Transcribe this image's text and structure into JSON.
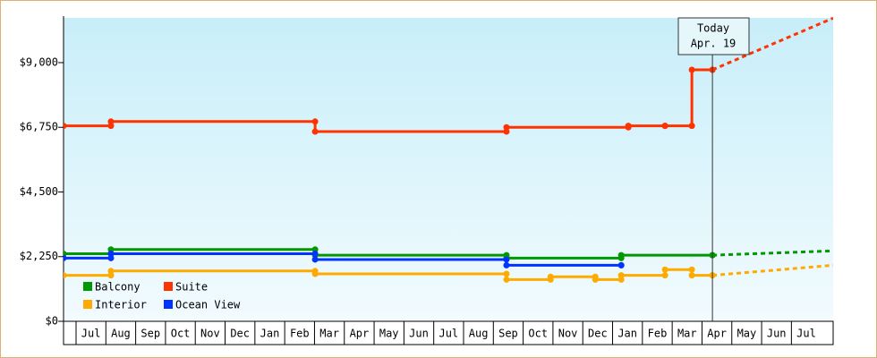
{
  "chart_data": {
    "type": "step-line",
    "xlim": [
      0.58,
      26.4
    ],
    "xticks": [
      {
        "value": 1,
        "label": "Jul"
      },
      {
        "value": 2,
        "label": "Aug"
      },
      {
        "value": 3,
        "label": "Sep"
      },
      {
        "value": 4,
        "label": "Oct"
      },
      {
        "value": 5,
        "label": "Nov"
      },
      {
        "value": 6,
        "label": "Dec"
      },
      {
        "value": 7,
        "label": "Jan"
      },
      {
        "value": 8,
        "label": "Feb"
      },
      {
        "value": 9,
        "label": "Mar"
      },
      {
        "value": 10,
        "label": "Apr"
      },
      {
        "value": 11,
        "label": "May"
      },
      {
        "value": 12,
        "label": "Jun"
      },
      {
        "value": 13,
        "label": "Jul"
      },
      {
        "value": 14,
        "label": "Aug"
      },
      {
        "value": 15,
        "label": "Sep"
      },
      {
        "value": 16,
        "label": "Oct"
      },
      {
        "value": 17,
        "label": "Nov"
      },
      {
        "value": 18,
        "label": "Dec"
      },
      {
        "value": 19,
        "label": "Jan"
      },
      {
        "value": 20,
        "label": "Feb"
      },
      {
        "value": 21,
        "label": "Mar"
      },
      {
        "value": 22,
        "label": "Apr"
      },
      {
        "value": 23,
        "label": "May"
      },
      {
        "value": 24,
        "label": "Jun"
      },
      {
        "value": 25,
        "label": "Jul"
      }
    ],
    "ylim": [
      0,
      10500
    ],
    "yticks": [
      {
        "value": 0,
        "label": "$0"
      },
      {
        "value": 2250,
        "label": "$2,250"
      },
      {
        "value": 4500,
        "label": "$4,500"
      },
      {
        "value": 6750,
        "label": "$6,750"
      },
      {
        "value": 9000,
        "label": "$9,000"
      }
    ],
    "annotation": {
      "x": 22.35,
      "lines": [
        "Today",
        "Apr. 19"
      ]
    },
    "series": [
      {
        "name": "Balcony",
        "color": "#009900",
        "x": [
          0.58,
          2.17,
          9.02,
          15.44,
          19.29,
          22.35
        ],
        "values": [
          2350,
          2500,
          2300,
          2200,
          2300,
          2300
        ],
        "forecast": {
          "x": [
            26.4
          ],
          "values": [
            2450
          ]
        }
      },
      {
        "name": "Suite",
        "color": "#ff3300",
        "x": [
          0.58,
          2.17,
          9.02,
          15.44,
          19.53,
          20.76,
          21.66,
          22.35
        ],
        "values": [
          6800,
          6950,
          6600,
          6750,
          6800,
          6800,
          8750,
          8750
        ],
        "forecast": {
          "x": [
            26.4
          ],
          "values": [
            10550
          ]
        }
      },
      {
        "name": "Interior",
        "color": "#ffaa00",
        "x": [
          0.58,
          2.17,
          9.02,
          15.44,
          16.92,
          18.42,
          19.29,
          20.76,
          21.66,
          22.35
        ],
        "values": [
          1600,
          1750,
          1650,
          1450,
          1550,
          1450,
          1600,
          1800,
          1600,
          1600
        ],
        "forecast": {
          "x": [
            26.4
          ],
          "values": [
            1950
          ]
        }
      },
      {
        "name": "Ocean View",
        "color": "#0033ff",
        "x": [
          0.58,
          2.17,
          9.02,
          15.44,
          19.29
        ],
        "values": [
          2200,
          2350,
          2150,
          1950,
          1950
        ]
      }
    ]
  }
}
